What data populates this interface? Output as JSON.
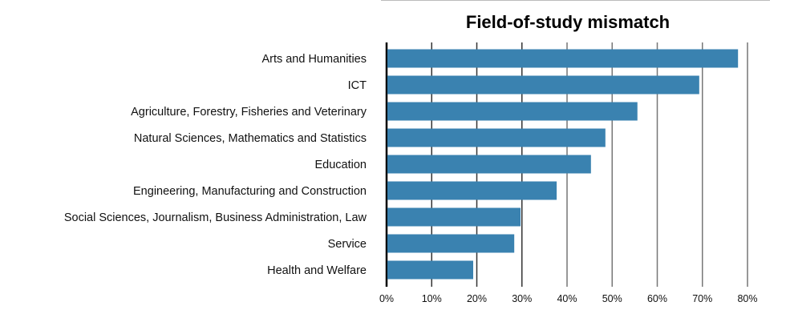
{
  "chart_data": {
    "type": "bar",
    "orientation": "horizontal",
    "title": "Field-of-study mismatch",
    "xlabel": "",
    "ylabel": "",
    "categories": [
      "Arts and Humanities",
      "ICT",
      "Agriculture, Forestry, Fisheries and Veterinary",
      "Natural Sciences, Mathematics and Statistics",
      "Education",
      "Engineering, Manufacturing and Construction",
      "Social Sciences, Journalism, Business Administration, Law",
      "Service",
      "Health and Welfare"
    ],
    "values": [
      77.9,
      69.3,
      55.6,
      48.5,
      45.3,
      37.7,
      29.7,
      28.3,
      19.2
    ],
    "xlim": [
      0,
      80
    ],
    "xticks": [
      0,
      10,
      20,
      30,
      40,
      50,
      60,
      70,
      80
    ],
    "xtick_labels": [
      "0%",
      "10%",
      "20%",
      "30%",
      "40%",
      "50%",
      "60%",
      "70%",
      "80%"
    ],
    "grid": true,
    "bar_color": "#3a82b0"
  }
}
